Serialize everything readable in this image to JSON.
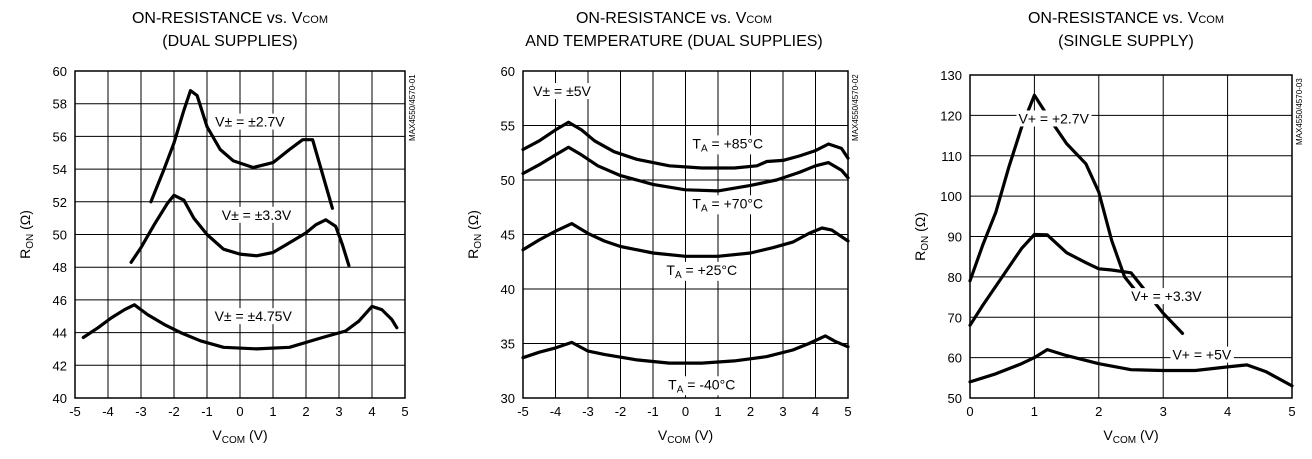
{
  "chart_data": [
    {
      "type": "line",
      "title_lines": [
        [
          "ON-RESISTANCE vs. V",
          "COM",
          ""
        ],
        [
          "(DUAL SUPPLIES)",
          "",
          ""
        ]
      ],
      "xlabel": [
        "V",
        "COM",
        " (V)"
      ],
      "ylabel": [
        "R",
        "ON",
        " (Ω)"
      ],
      "xlim": [
        -5,
        5
      ],
      "ylim": [
        40,
        60
      ],
      "xticks": [
        -5,
        -4,
        -3,
        -2,
        -1,
        0,
        1,
        2,
        3,
        4,
        5
      ],
      "yticks": [
        40,
        42,
        44,
        46,
        48,
        50,
        52,
        54,
        56,
        58,
        60
      ],
      "xtick_labels": [
        "-5",
        "-4",
        "-3",
        "-2",
        "-1",
        "0",
        "1",
        "2",
        "3",
        "4",
        "5"
      ],
      "ytick_labels": [
        "40",
        "42",
        "44",
        "46",
        "48",
        "50",
        "52",
        "54",
        "56",
        "58",
        "60"
      ],
      "grid": true,
      "fig_id": "MAX4550/4570-01",
      "series": [
        {
          "label": [
            "V± = ±2.7V",
            "",
            ""
          ],
          "label_at": [
            0.3,
            56.6
          ],
          "points": [
            [
              -2.7,
              52
            ],
            [
              -2.3,
              54
            ],
            [
              -2,
              55.6
            ],
            [
              -1.7,
              57.6
            ],
            [
              -1.5,
              58.8
            ],
            [
              -1.3,
              58.5
            ],
            [
              -1,
              56.6
            ],
            [
              -0.6,
              55.2
            ],
            [
              -0.2,
              54.5
            ],
            [
              0.4,
              54.1
            ],
            [
              1,
              54.4
            ],
            [
              1.5,
              55.2
            ],
            [
              1.9,
              55.8
            ],
            [
              2.2,
              55.8
            ],
            [
              2.5,
              53.7
            ],
            [
              2.8,
              51.6
            ]
          ]
        },
        {
          "label": [
            "V± = ±3.3V",
            "",
            ""
          ],
          "label_at": [
            0.5,
            50.9
          ],
          "points": [
            [
              -3.3,
              48.3
            ],
            [
              -3,
              49.2
            ],
            [
              -2.6,
              50.6
            ],
            [
              -2.2,
              51.9
            ],
            [
              -2,
              52.4
            ],
            [
              -1.7,
              52.1
            ],
            [
              -1.4,
              51
            ],
            [
              -1,
              50
            ],
            [
              -0.5,
              49.1
            ],
            [
              0,
              48.8
            ],
            [
              0.5,
              48.7
            ],
            [
              1,
              48.9
            ],
            [
              1.5,
              49.5
            ],
            [
              2,
              50.1
            ],
            [
              2.3,
              50.6
            ],
            [
              2.6,
              50.9
            ],
            [
              2.9,
              50.5
            ],
            [
              3.1,
              49.4
            ],
            [
              3.3,
              48.1
            ]
          ]
        },
        {
          "label": [
            "V± = ±4.75V",
            "",
            ""
          ],
          "label_at": [
            0.4,
            44.7
          ],
          "points": [
            [
              -4.75,
              43.7
            ],
            [
              -4.3,
              44.3
            ],
            [
              -3.9,
              44.9
            ],
            [
              -3.5,
              45.4
            ],
            [
              -3.2,
              45.7
            ],
            [
              -2.8,
              45.1
            ],
            [
              -2.3,
              44.5
            ],
            [
              -1.8,
              44
            ],
            [
              -1.2,
              43.5
            ],
            [
              -0.5,
              43.1
            ],
            [
              0.5,
              43
            ],
            [
              1.5,
              43.1
            ],
            [
              2.5,
              43.7
            ],
            [
              3.2,
              44.1
            ],
            [
              3.6,
              44.7
            ],
            [
              4,
              45.6
            ],
            [
              4.3,
              45.4
            ],
            [
              4.6,
              44.8
            ],
            [
              4.75,
              44.3
            ]
          ]
        }
      ]
    },
    {
      "type": "line",
      "title_lines": [
        [
          "ON-RESISTANCE vs. V",
          "COM",
          ""
        ],
        [
          "AND TEMPERATURE (DUAL SUPPLIES)",
          "",
          ""
        ]
      ],
      "xlabel": [
        "V",
        "COM",
        " (V)"
      ],
      "ylabel": [
        "R",
        "ON",
        " (Ω)"
      ],
      "xlim": [
        -5,
        5
      ],
      "ylim": [
        30,
        60
      ],
      "xticks": [
        -5,
        -4,
        -3,
        -2,
        -1,
        0,
        1,
        2,
        3,
        4,
        5
      ],
      "yticks": [
        30,
        35,
        40,
        45,
        50,
        55,
        60
      ],
      "xtick_labels": [
        "-5",
        "-4",
        "-3",
        "-2",
        "-1",
        "0",
        "1",
        "2",
        "3",
        "4",
        "5"
      ],
      "ytick_labels": [
        "30",
        "35",
        "40",
        "45",
        "50",
        "55",
        "60"
      ],
      "grid": true,
      "fig_id": "MAX4550/4570-02",
      "static_label": {
        "text": "V± = ±5V",
        "at": [
          -3.8,
          57.7
        ]
      },
      "series": [
        {
          "label": [
            "T",
            "A",
            " = +85°C"
          ],
          "label_at": [
            1.3,
            52.9
          ],
          "points": [
            [
              -5,
              52.8
            ],
            [
              -4.5,
              53.6
            ],
            [
              -4,
              54.6
            ],
            [
              -3.6,
              55.3
            ],
            [
              -3.2,
              54.6
            ],
            [
              -2.8,
              53.6
            ],
            [
              -2.2,
              52.6
            ],
            [
              -1.5,
              51.9
            ],
            [
              -0.5,
              51.3
            ],
            [
              0.5,
              51.1
            ],
            [
              1.5,
              51.1
            ],
            [
              2.2,
              51.3
            ],
            [
              2.5,
              51.7
            ],
            [
              3,
              51.8
            ],
            [
              3.5,
              52.2
            ],
            [
              4,
              52.7
            ],
            [
              4.4,
              53.3
            ],
            [
              4.8,
              52.9
            ],
            [
              5,
              52
            ]
          ]
        },
        {
          "label": [
            "T",
            "A",
            " = +70°C"
          ],
          "label_at": [
            1.3,
            47.4
          ],
          "points": [
            [
              -5,
              50.6
            ],
            [
              -4.5,
              51.4
            ],
            [
              -4,
              52.3
            ],
            [
              -3.6,
              53
            ],
            [
              -3.2,
              52.3
            ],
            [
              -2.7,
              51.3
            ],
            [
              -2,
              50.4
            ],
            [
              -1,
              49.6
            ],
            [
              0,
              49.1
            ],
            [
              1,
              49
            ],
            [
              2,
              49.5
            ],
            [
              2.8,
              50
            ],
            [
              3.5,
              50.7
            ],
            [
              4,
              51.3
            ],
            [
              4.4,
              51.6
            ],
            [
              4.8,
              50.9
            ],
            [
              5,
              50.2
            ]
          ]
        },
        {
          "label": [
            "T",
            "A",
            " = +25°C"
          ],
          "label_at": [
            0.5,
            41.3
          ],
          "points": [
            [
              -5,
              43.6
            ],
            [
              -4.5,
              44.5
            ],
            [
              -4,
              45.3
            ],
            [
              -3.5,
              46
            ],
            [
              -3,
              45.1
            ],
            [
              -2.5,
              44.4
            ],
            [
              -2,
              43.9
            ],
            [
              -1,
              43.3
            ],
            [
              0,
              43
            ],
            [
              1,
              43
            ],
            [
              2,
              43.3
            ],
            [
              2.7,
              43.8
            ],
            [
              3.3,
              44.3
            ],
            [
              3.8,
              45.1
            ],
            [
              4.2,
              45.6
            ],
            [
              4.5,
              45.4
            ],
            [
              5,
              44.4
            ]
          ]
        },
        {
          "label": [
            "T",
            "A",
            " = -40°C"
          ],
          "label_at": [
            0.5,
            30.8
          ],
          "points": [
            [
              -5,
              33.7
            ],
            [
              -4.5,
              34.2
            ],
            [
              -4,
              34.6
            ],
            [
              -3.5,
              35.1
            ],
            [
              -3,
              34.3
            ],
            [
              -2.5,
              34
            ],
            [
              -1.5,
              33.5
            ],
            [
              -0.5,
              33.2
            ],
            [
              0.5,
              33.2
            ],
            [
              1.5,
              33.4
            ],
            [
              2.5,
              33.8
            ],
            [
              3.3,
              34.4
            ],
            [
              3.8,
              35
            ],
            [
              4.3,
              35.7
            ],
            [
              4.6,
              35.2
            ],
            [
              5,
              34.7
            ]
          ]
        }
      ]
    },
    {
      "type": "line",
      "title_lines": [
        [
          "ON-RESISTANCE vs. V",
          "COM",
          ""
        ],
        [
          "(SINGLE SUPPLY)",
          "",
          ""
        ]
      ],
      "xlabel": [
        "V",
        "COM",
        " (V)"
      ],
      "ylabel": [
        "R",
        "ON",
        " (Ω)"
      ],
      "xlim": [
        0,
        5
      ],
      "ylim": [
        50,
        130
      ],
      "xticks": [
        0,
        1,
        2,
        3,
        4,
        5
      ],
      "yticks": [
        50,
        60,
        70,
        80,
        90,
        100,
        110,
        120,
        130
      ],
      "xtick_labels": [
        "0",
        "1",
        "2",
        "3",
        "4",
        "5"
      ],
      "ytick_labels": [
        "50",
        "60",
        "70",
        "80",
        "90",
        "100",
        "110",
        "120",
        "130"
      ],
      "grid": true,
      "fig_id": "MAX4550/4570-03",
      "series": [
        {
          "label": [
            "V+ = +2.7V",
            "",
            ""
          ],
          "label_at": [
            1.3,
            118
          ],
          "points": [
            [
              0,
              79
            ],
            [
              0.2,
              88
            ],
            [
              0.4,
              96
            ],
            [
              0.6,
              107
            ],
            [
              0.8,
              117
            ],
            [
              1,
              125
            ],
            [
              1.2,
              120
            ],
            [
              1.5,
              113
            ],
            [
              1.8,
              108
            ],
            [
              2,
              101
            ],
            [
              2.2,
              89
            ],
            [
              2.4,
              80
            ],
            [
              2.7,
              74
            ]
          ]
        },
        {
          "label": [
            "V+ = +3.3V",
            "",
            ""
          ],
          "label_at": [
            3.05,
            74
          ],
          "points": [
            [
              0,
              68
            ],
            [
              0.2,
              73
            ],
            [
              0.5,
              80
            ],
            [
              0.8,
              87
            ],
            [
              1,
              90.5
            ],
            [
              1.2,
              90.4
            ],
            [
              1.5,
              86
            ],
            [
              1.8,
              83.5
            ],
            [
              2,
              82
            ],
            [
              2.2,
              81.7
            ],
            [
              2.5,
              81
            ],
            [
              2.7,
              77
            ],
            [
              3,
              71
            ],
            [
              3.3,
              66
            ]
          ]
        },
        {
          "label": [
            "V+ = +5V",
            "",
            ""
          ],
          "label_at": [
            3.6,
            59.5
          ],
          "points": [
            [
              0,
              54
            ],
            [
              0.4,
              56
            ],
            [
              0.8,
              58.5
            ],
            [
              1,
              60
            ],
            [
              1.2,
              62
            ],
            [
              1.5,
              60.5
            ],
            [
              2,
              58.5
            ],
            [
              2.5,
              57
            ],
            [
              3,
              56.8
            ],
            [
              3.5,
              56.8
            ],
            [
              4,
              57.7
            ],
            [
              4.3,
              58.2
            ],
            [
              4.6,
              56.5
            ],
            [
              5,
              53
            ]
          ]
        }
      ]
    }
  ]
}
